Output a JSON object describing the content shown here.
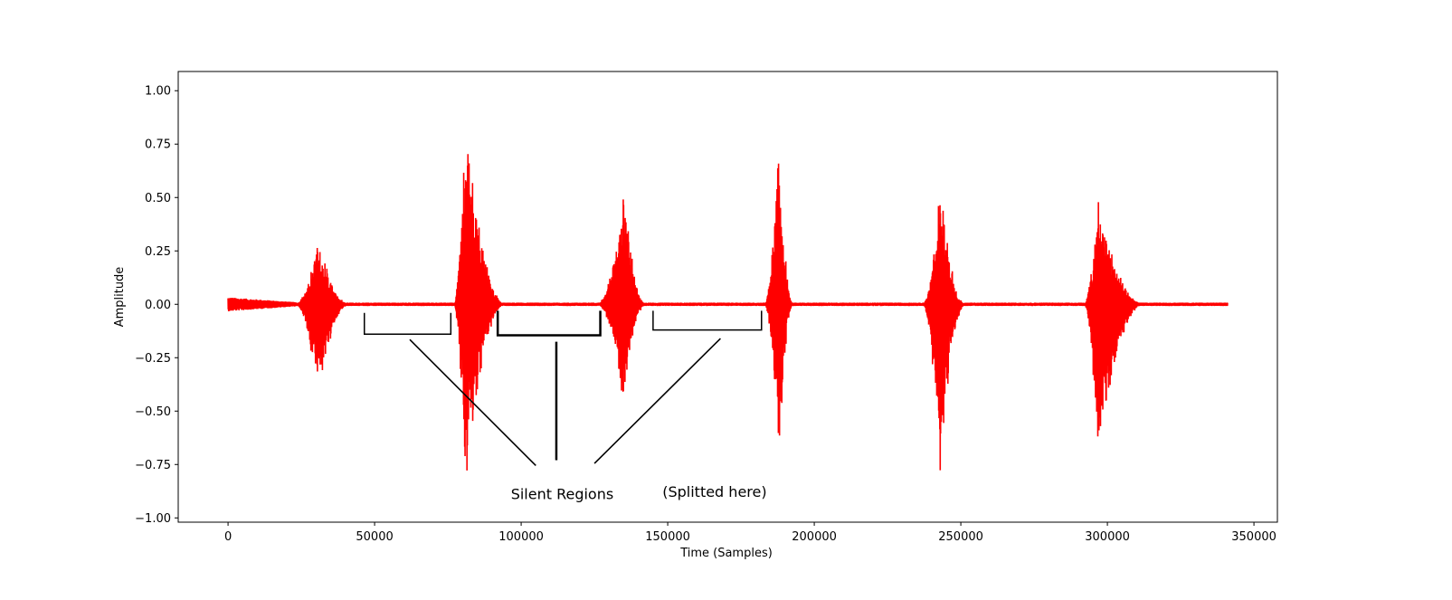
{
  "chart_data": {
    "type": "line",
    "title": "",
    "xlabel": "Time (Samples)",
    "ylabel": "Amplitude",
    "xlim": [
      -17000,
      358000
    ],
    "ylim": [
      -1.02,
      1.09
    ],
    "xticks": [
      0,
      50000,
      100000,
      150000,
      200000,
      250000,
      300000,
      350000
    ],
    "xtick_labels": [
      "0",
      "50000",
      "100000",
      "150000",
      "200000",
      "250000",
      "300000",
      "350000"
    ],
    "yticks": [
      1.0,
      0.75,
      0.5,
      0.25,
      0.0,
      -0.25,
      -0.5,
      -0.75,
      -1.0
    ],
    "ytick_labels": [
      "1.00",
      "0.75",
      "0.50",
      "0.25",
      "0.00",
      "−0.25",
      "−0.50",
      "−0.75",
      "−1.00"
    ],
    "grid": false,
    "legend": "none",
    "series": [
      {
        "color": "#ff0000",
        "x_range": [
          0,
          341000
        ],
        "noise_floor": 0.008,
        "bursts": [
          {
            "start": 23000,
            "peak": 31000,
            "end": 42000,
            "max": 0.33,
            "min": -0.47
          },
          {
            "start": 77000,
            "peak": 81000,
            "end": 95000,
            "max": 1.0,
            "min": -0.93
          },
          {
            "start": 126000,
            "peak": 135000,
            "end": 143000,
            "max": 0.58,
            "min": -0.52
          },
          {
            "start": 183000,
            "peak": 188000,
            "end": 193000,
            "max": 0.83,
            "min": -0.84
          },
          {
            "start": 237000,
            "peak": 243000,
            "end": 252000,
            "max": 0.6,
            "min": -0.88
          },
          {
            "start": 292000,
            "peak": 297000,
            "end": 313000,
            "max": 0.57,
            "min": -0.79
          }
        ]
      }
    ],
    "annotations": [
      {
        "text": "Silent Regions",
        "x": 114000,
        "y": -0.89
      },
      {
        "text": "(Splitted here)",
        "x": 166000,
        "y": -0.88
      }
    ],
    "silent_regions": [
      {
        "start": 46500,
        "end": 76000,
        "y_top": -0.04,
        "y_bottom": -0.14
      },
      {
        "start": 92000,
        "end": 127000,
        "y_top": -0.03,
        "y_bottom": -0.145
      },
      {
        "start": 145000,
        "end": 182000,
        "y_top": -0.03,
        "y_bottom": -0.12
      }
    ],
    "pointer_lines": [
      {
        "x1": 62000,
        "y1": -0.165,
        "x2": 105000,
        "y2": -0.755
      },
      {
        "x1": 112000,
        "y1": -0.175,
        "x2": 112000,
        "y2": -0.73
      },
      {
        "x1": 168000,
        "y1": -0.16,
        "x2": 125000,
        "y2": -0.745
      }
    ]
  }
}
